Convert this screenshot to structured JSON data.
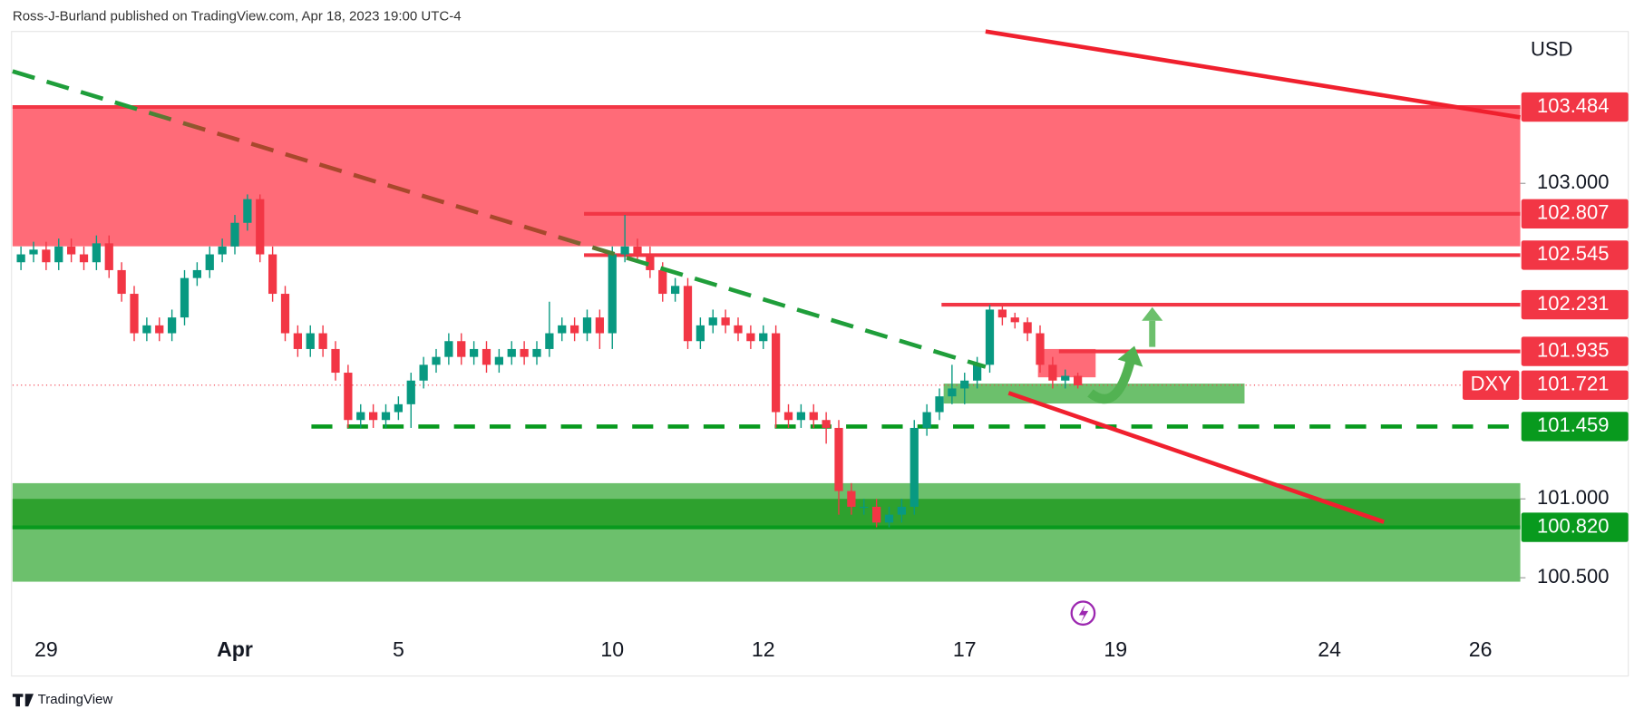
{
  "header": "Ross-J-Burland published on TradingView.com, Apr 18, 2023 19:00 UTC-4",
  "footer": "TradingView",
  "chart_data": {
    "type": "candlestick",
    "currency": "USD",
    "colors": {
      "up": "#089981",
      "down": "#f23645"
    },
    "ylim": [
      100.143,
      103.963
    ],
    "yticks": [
      {
        "value": 103,
        "label": "103.000"
      },
      {
        "value": 101,
        "label": "101.000"
      },
      {
        "value": 100.5,
        "label": "100.500"
      }
    ],
    "categories": [
      null,
      null,
      "29",
      null,
      null,
      null,
      null,
      null,
      null,
      null,
      null,
      null,
      null,
      null,
      null,
      null,
      null,
      "Apr",
      null,
      null,
      null,
      null,
      null,
      null,
      null,
      null,
      null,
      null,
      null,
      null,
      "5",
      null,
      null,
      null,
      null,
      null,
      null,
      null,
      null,
      null,
      null,
      null,
      null,
      null,
      null,
      null,
      null,
      "10",
      null,
      null,
      null,
      null,
      null,
      null,
      null,
      null,
      null,
      null,
      null,
      "12",
      null,
      null,
      null,
      null,
      null,
      null,
      null,
      null,
      null,
      null,
      null,
      null,
      null,
      null,
      null,
      "17",
      null,
      null,
      null,
      null,
      null,
      null,
      null,
      null,
      null,
      null,
      null,
      "19",
      null,
      null,
      null,
      null,
      null,
      null,
      null,
      null,
      null,
      null,
      null,
      null,
      null,
      null,
      null,
      null,
      "24",
      null,
      null,
      null,
      null,
      null,
      null,
      null,
      null,
      null,
      null,
      null,
      "26",
      null,
      null,
      null
    ],
    "open": [
      102.5,
      102.55,
      102.58,
      102.5,
      102.6,
      102.55,
      102.5,
      102.62,
      102.45,
      102.3,
      102.05,
      102.1,
      102.05,
      102.15,
      102.4,
      102.45,
      102.55,
      102.6,
      102.75,
      102.9,
      102.55,
      102.3,
      102.05,
      101.95,
      102.05,
      101.95,
      101.8,
      101.5,
      101.55,
      101.5,
      101.55,
      101.6,
      101.75,
      101.85,
      101.9,
      102,
      101.9,
      101.95,
      101.85,
      101.9,
      101.95,
      101.9,
      101.95,
      102.05,
      102.1,
      102.05,
      102.15,
      102.05,
      102.55,
      102.6,
      102.55,
      102.45,
      102.3,
      102.35,
      102,
      102.1,
      102.15,
      102.1,
      102.05,
      102,
      102.05,
      101.55,
      101.5,
      101.55,
      101.5,
      101.45,
      101.05,
      100.95,
      100.95,
      100.85,
      100.9,
      100.95,
      101.45,
      101.55,
      101.65,
      101.7,
      101.75,
      101.85,
      102.2,
      102.15,
      102.12,
      102.05,
      101.85,
      101.75,
      101.78,
      null,
      null,
      null,
      null,
      null,
      null,
      null,
      null,
      null,
      null,
      null,
      null,
      null,
      null,
      null,
      null,
      null,
      null,
      null,
      null,
      null,
      null,
      null,
      null,
      null,
      null,
      null,
      null,
      null,
      null,
      null,
      null,
      null,
      null,
      null
    ],
    "high": [
      102.6,
      102.63,
      102.63,
      102.65,
      102.65,
      102.6,
      102.67,
      102.67,
      102.5,
      102.35,
      102.15,
      102.15,
      102.2,
      102.45,
      102.5,
      102.6,
      102.65,
      102.8,
      102.93,
      102.93,
      102.6,
      102.35,
      102.1,
      102.1,
      102.1,
      102,
      101.85,
      101.6,
      101.6,
      101.6,
      101.65,
      101.8,
      101.9,
      101.95,
      102.05,
      102.05,
      102,
      102,
      101.95,
      102,
      102,
      102,
      102.25,
      102.15,
      102.15,
      102.2,
      102.2,
      102.6,
      102.8,
      102.65,
      102.6,
      102.5,
      102.4,
      102.4,
      102.15,
      102.2,
      102.2,
      102.15,
      102.1,
      102.1,
      102.1,
      101.6,
      101.6,
      101.6,
      101.55,
      101.5,
      101.1,
      101,
      101,
      100.95,
      101,
      101.5,
      101.6,
      101.7,
      101.85,
      101.8,
      101.9,
      102.23,
      102.23,
      102.18,
      102.15,
      102.1,
      101.9,
      101.82,
      101.8,
      null,
      null,
      null,
      null,
      null,
      null,
      null,
      null,
      null,
      null,
      null,
      null,
      null,
      null,
      null,
      null,
      null,
      null,
      null,
      null,
      null,
      null,
      null,
      null,
      null,
      null,
      null,
      null,
      null,
      null,
      null,
      null,
      null,
      null,
      null
    ],
    "low": [
      102.45,
      102.5,
      102.45,
      102.45,
      102.5,
      102.45,
      102.45,
      102.4,
      102.25,
      102,
      102,
      102,
      102,
      102.1,
      102.35,
      102.4,
      102.5,
      102.55,
      102.7,
      102.5,
      102.25,
      102,
      101.9,
      101.9,
      101.9,
      101.75,
      101.45,
      101.45,
      101.45,
      101.45,
      101.5,
      101.45,
      101.7,
      101.8,
      101.85,
      101.85,
      101.85,
      101.8,
      101.8,
      101.85,
      101.85,
      101.85,
      101.9,
      102,
      102,
      102,
      101.95,
      101.95,
      102.5,
      102.5,
      102.4,
      102.25,
      102.25,
      101.95,
      101.95,
      102.05,
      102.05,
      102,
      101.95,
      101.95,
      101.45,
      101.45,
      101.45,
      101.45,
      101.35,
      100.9,
      100.9,
      100.9,
      100.82,
      100.82,
      100.85,
      100.9,
      101.4,
      101.5,
      101.6,
      101.6,
      101.7,
      101.8,
      102.1,
      102.08,
      102,
      101.8,
      101.7,
      101.7,
      101.7,
      null,
      null,
      null,
      null,
      null,
      null,
      null,
      null,
      null,
      null,
      null,
      null,
      null,
      null,
      null,
      null,
      null,
      null,
      null,
      null,
      null,
      null,
      null,
      null,
      null,
      null,
      null,
      null,
      null,
      null,
      null,
      null,
      null,
      null,
      null
    ],
    "close": [
      102.55,
      102.58,
      102.5,
      102.6,
      102.55,
      102.5,
      102.62,
      102.45,
      102.3,
      102.05,
      102.1,
      102.05,
      102.15,
      102.4,
      102.45,
      102.55,
      102.6,
      102.75,
      102.9,
      102.55,
      102.3,
      102.05,
      101.95,
      102.05,
      101.95,
      101.8,
      101.5,
      101.55,
      101.5,
      101.55,
      101.6,
      101.75,
      101.85,
      101.9,
      102,
      101.9,
      101.95,
      101.85,
      101.9,
      101.95,
      101.9,
      101.95,
      102.05,
      102.1,
      102.05,
      102.15,
      102.05,
      102.55,
      102.6,
      102.55,
      102.45,
      102.3,
      102.35,
      102,
      102.1,
      102.15,
      102.1,
      102.05,
      102,
      102.05,
      101.55,
      101.5,
      101.55,
      101.5,
      101.45,
      101.05,
      100.95,
      100.95,
      100.85,
      100.9,
      100.95,
      101.45,
      101.55,
      101.65,
      101.7,
      101.75,
      101.85,
      102.2,
      102.15,
      102.12,
      102.05,
      101.85,
      101.75,
      101.78,
      101.72,
      null,
      null,
      null,
      null,
      null,
      null,
      null,
      null,
      null,
      null,
      null,
      null,
      null,
      null,
      null,
      null,
      null,
      null,
      null,
      null,
      null,
      null,
      null,
      null,
      null,
      null,
      null,
      null,
      null,
      null,
      null,
      null,
      null,
      null,
      null
    ],
    "levels": [
      {
        "value": 103.484,
        "color": "#f23645"
      },
      {
        "value": 102.807,
        "color": "#f23645"
      },
      {
        "value": 102.545,
        "color": "#f23645"
      },
      {
        "value": 102.231,
        "color": "#f23645"
      },
      {
        "value": 101.935,
        "color": "#f23645"
      },
      {
        "value": 101.459,
        "color": "#089a1e"
      },
      {
        "value": {
          "value": 100.82,
          "label": "100.820"
        },
        "color": "#089a1e"
      }
    ],
    "last": {
      "symbol": "DXY",
      "value": 101.721,
      "color": "#f23645"
    }
  }
}
